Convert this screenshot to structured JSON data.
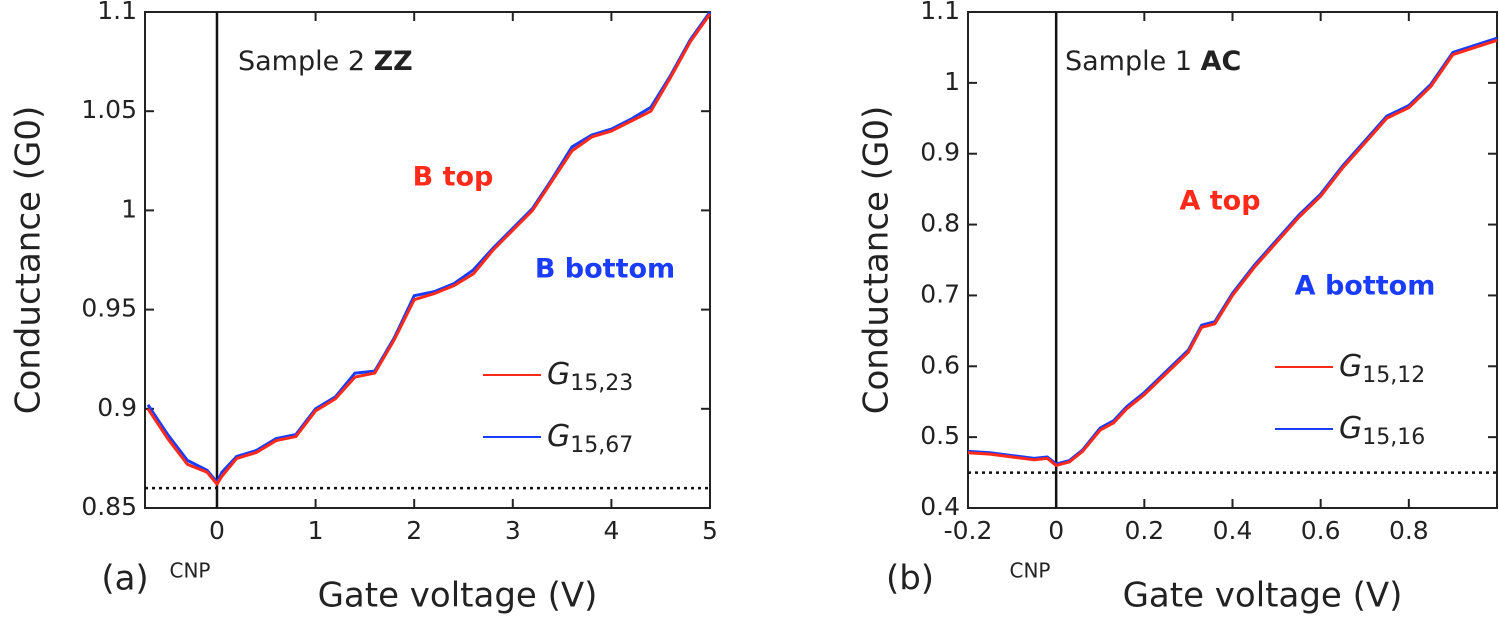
{
  "chart_data": [
    {
      "type": "line",
      "xlabel": "Gate voltage (V)",
      "ylabel": "Conductance (G0)",
      "panel_label": "(a)",
      "sample": "Sample 2",
      "sample_type": "ZZ",
      "top_label": "B top",
      "top_color": "#ff2a1a",
      "bottom_label": "B bottom",
      "bottom_color": "#1a3cff",
      "cnp_label": "CNP",
      "hline": 0.86,
      "vline": 0,
      "legend": "lower right",
      "grid": false,
      "xlim": [
        -0.73,
        5
      ],
      "xticks": [
        0,
        1,
        2,
        3,
        4,
        5
      ],
      "ylim": [
        0.85,
        1.1
      ],
      "yticks": [
        0.85,
        0.9,
        0.95,
        1,
        1.05,
        1.1
      ],
      "x": [
        -0.7,
        -0.5,
        -0.3,
        -0.1,
        0,
        0.05,
        0.2,
        0.4,
        0.6,
        0.8,
        1.0,
        1.2,
        1.4,
        1.6,
        1.8,
        2.0,
        2.2,
        2.4,
        2.6,
        2.8,
        3.0,
        3.2,
        3.4,
        3.6,
        3.8,
        4.0,
        4.2,
        4.4,
        4.6,
        4.8,
        5.0
      ],
      "series": [
        {
          "name": "G15,23",
          "color": "#ff2a1a",
          "values": [
            0.9,
            0.885,
            0.872,
            0.868,
            0.862,
            0.866,
            0.875,
            0.878,
            0.884,
            0.886,
            0.899,
            0.905,
            0.916,
            0.918,
            0.935,
            0.955,
            0.958,
            0.962,
            0.968,
            0.98,
            0.99,
            1.0,
            1.015,
            1.03,
            1.037,
            1.04,
            1.045,
            1.05,
            1.067,
            1.085,
            1.099
          ]
        },
        {
          "name": "G15,67",
          "color": "#1a3cff",
          "values": [
            0.902,
            0.887,
            0.874,
            0.869,
            0.863,
            0.868,
            0.876,
            0.879,
            0.885,
            0.887,
            0.9,
            0.906,
            0.918,
            0.919,
            0.936,
            0.957,
            0.959,
            0.963,
            0.97,
            0.981,
            0.991,
            1.001,
            1.016,
            1.032,
            1.038,
            1.041,
            1.046,
            1.052,
            1.068,
            1.086,
            1.1
          ]
        }
      ]
    },
    {
      "type": "line",
      "xlabel": "Gate voltage (V)",
      "ylabel": "Conductance (G0)",
      "panel_label": "(b)",
      "sample": "Sample 1",
      "sample_type": "AC",
      "top_label": "A top",
      "top_color": "#ff2a1a",
      "bottom_label": "A bottom",
      "bottom_color": "#1a3cff",
      "cnp_label": "CNP",
      "hline": 0.45,
      "vline": 0,
      "legend": "lower right",
      "grid": false,
      "xlim": [
        -0.2,
        1.0
      ],
      "xticks": [
        -0.2,
        0,
        0.2,
        0.4,
        0.6,
        0.8
      ],
      "ylim": [
        0.4,
        1.1
      ],
      "yticks": [
        0.4,
        0.5,
        0.6,
        0.7,
        0.8,
        0.9,
        1,
        1.1
      ],
      "x": [
        -0.2,
        -0.15,
        -0.1,
        -0.05,
        -0.02,
        0,
        0.03,
        0.06,
        0.1,
        0.13,
        0.16,
        0.2,
        0.25,
        0.3,
        0.33,
        0.36,
        0.4,
        0.45,
        0.5,
        0.55,
        0.6,
        0.65,
        0.7,
        0.75,
        0.8,
        0.85,
        0.9,
        0.95,
        1.0
      ],
      "series": [
        {
          "name": "G15,12",
          "color": "#ff2a1a",
          "values": [
            0.478,
            0.476,
            0.472,
            0.468,
            0.47,
            0.46,
            0.465,
            0.48,
            0.51,
            0.52,
            0.54,
            0.56,
            0.59,
            0.62,
            0.655,
            0.66,
            0.7,
            0.74,
            0.775,
            0.81,
            0.84,
            0.88,
            0.915,
            0.95,
            0.965,
            0.995,
            1.04,
            1.05,
            1.06
          ]
        },
        {
          "name": "G15,16",
          "color": "#1a3cff",
          "values": [
            0.48,
            0.478,
            0.474,
            0.47,
            0.472,
            0.462,
            0.467,
            0.482,
            0.513,
            0.523,
            0.543,
            0.563,
            0.593,
            0.623,
            0.658,
            0.663,
            0.703,
            0.743,
            0.778,
            0.813,
            0.843,
            0.883,
            0.918,
            0.953,
            0.968,
            0.998,
            1.043,
            1.053,
            1.063
          ]
        }
      ]
    }
  ]
}
